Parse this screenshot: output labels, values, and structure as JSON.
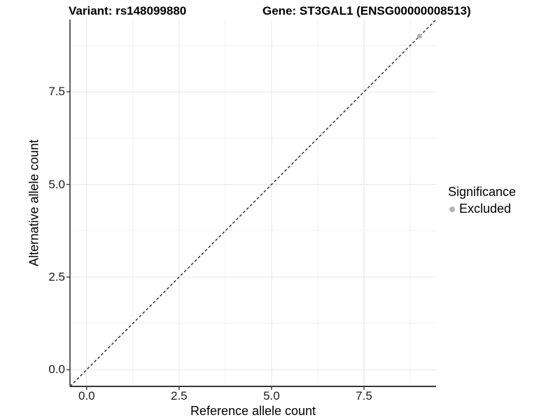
{
  "chart_data": {
    "type": "scatter",
    "title_left": "Variant: rs148099880",
    "title_right": "Gene: ST3GAL1 (ENSG00000008513)",
    "xlabel": "Reference allele count",
    "ylabel": "Alternative allele count",
    "xlim": [
      -0.45,
      9.45
    ],
    "ylim": [
      -0.45,
      9.45
    ],
    "x_ticks": {
      "values": [
        0,
        2.5,
        5,
        7.5
      ],
      "labels": [
        "0.0",
        "2.5",
        "5.0",
        "7.5"
      ]
    },
    "y_ticks": {
      "values": [
        0,
        2.5,
        5,
        7.5
      ],
      "labels": [
        "0.0",
        "2.5",
        "5.0",
        "7.5"
      ]
    },
    "minor_gridlines": [
      1.25,
      3.75,
      6.25,
      8.75
    ],
    "grid": true,
    "reference_line": {
      "type": "identity y=x",
      "style": "dashed",
      "color": "#1a1a1a"
    },
    "series": [
      {
        "name": "Excluded",
        "color": "#b5b5b5",
        "points": [
          {
            "x": 9,
            "y": 9
          }
        ]
      }
    ],
    "legend": {
      "title": "Significance",
      "position": "right",
      "items": [
        {
          "label": "Excluded",
          "color": "#b5b5b5"
        }
      ]
    },
    "colors": {
      "grid_major": "#e6e6e6",
      "grid_minor": "#f1f1f1",
      "axis_line": "#383838",
      "tick_text": "#1a1a1a",
      "background": "#ffffff"
    }
  }
}
